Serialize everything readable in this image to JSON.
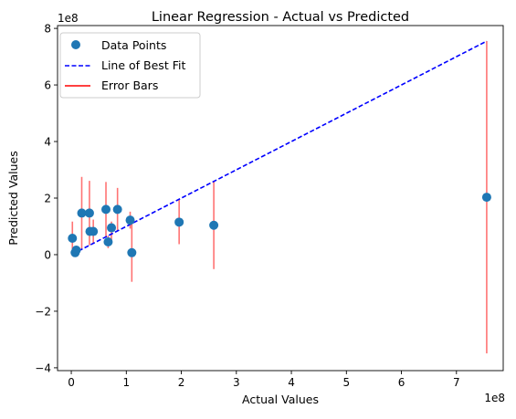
{
  "chart_data": {
    "type": "scatter",
    "title": "Linear Regression - Actual vs Predicted",
    "xlabel": "Actual Values",
    "ylabel": "Predicted Values",
    "x_scale_label": "1e8",
    "y_scale_label": "1e8",
    "xlim": [
      -0.25,
      7.85
    ],
    "ylim": [
      -4.1,
      8.1
    ],
    "x_ticks": [
      0,
      1,
      2,
      3,
      4,
      5,
      6,
      7
    ],
    "x_tick_labels": [
      "0",
      "1",
      "2",
      "3",
      "4",
      "5",
      "6",
      "7"
    ],
    "y_ticks": [
      -4,
      -2,
      0,
      2,
      4,
      6,
      8
    ],
    "y_tick_labels": [
      "−4",
      "−2",
      "0",
      "2",
      "4",
      "6",
      "8"
    ],
    "grid": false,
    "legend_position": "top-left",
    "legend": {
      "points": "Data Points",
      "fit": "Line of Best Fit",
      "errors": "Error Bars"
    },
    "colors": {
      "points": "#1f77b4",
      "fit": "#0000ff",
      "errors": "#ff0000"
    },
    "fit_line": {
      "x": [
        0.02,
        7.55
      ],
      "y": [
        0.02,
        7.55
      ]
    },
    "points": [
      {
        "x": 0.02,
        "y": 0.58
      },
      {
        "x": 0.07,
        "y": 0.07
      },
      {
        "x": 0.09,
        "y": 0.16
      },
      {
        "x": 0.19,
        "y": 1.47
      },
      {
        "x": 0.33,
        "y": 1.47
      },
      {
        "x": 0.34,
        "y": 0.82
      },
      {
        "x": 0.4,
        "y": 0.82
      },
      {
        "x": 0.63,
        "y": 1.6
      },
      {
        "x": 0.67,
        "y": 0.45
      },
      {
        "x": 0.73,
        "y": 0.95
      },
      {
        "x": 0.84,
        "y": 1.6
      },
      {
        "x": 1.07,
        "y": 1.22
      },
      {
        "x": 1.1,
        "y": 0.07
      },
      {
        "x": 1.96,
        "y": 1.15
      },
      {
        "x": 2.59,
        "y": 1.04
      },
      {
        "x": 7.55,
        "y": 2.03
      }
    ],
    "error_bars": [
      {
        "x": 0.02,
        "low": 0.02,
        "high": 1.17
      },
      {
        "x": 0.19,
        "low": 0.19,
        "high": 2.75
      },
      {
        "x": 0.33,
        "low": 0.33,
        "high": 2.61
      },
      {
        "x": 0.4,
        "low": 0.4,
        "high": 1.24
      },
      {
        "x": 0.63,
        "low": 0.63,
        "high": 2.57
      },
      {
        "x": 0.67,
        "low": 0.23,
        "high": 0.67
      },
      {
        "x": 0.73,
        "low": 0.51,
        "high": 1.17
      },
      {
        "x": 0.84,
        "low": 0.84,
        "high": 2.36
      },
      {
        "x": 1.07,
        "low": 0.92,
        "high": 1.52
      },
      {
        "x": 1.1,
        "low": -0.96,
        "high": 1.1
      },
      {
        "x": 1.96,
        "low": 0.37,
        "high": 1.96
      },
      {
        "x": 2.59,
        "low": -0.51,
        "high": 2.59
      },
      {
        "x": 7.55,
        "low": -3.49,
        "high": 7.55
      }
    ]
  }
}
